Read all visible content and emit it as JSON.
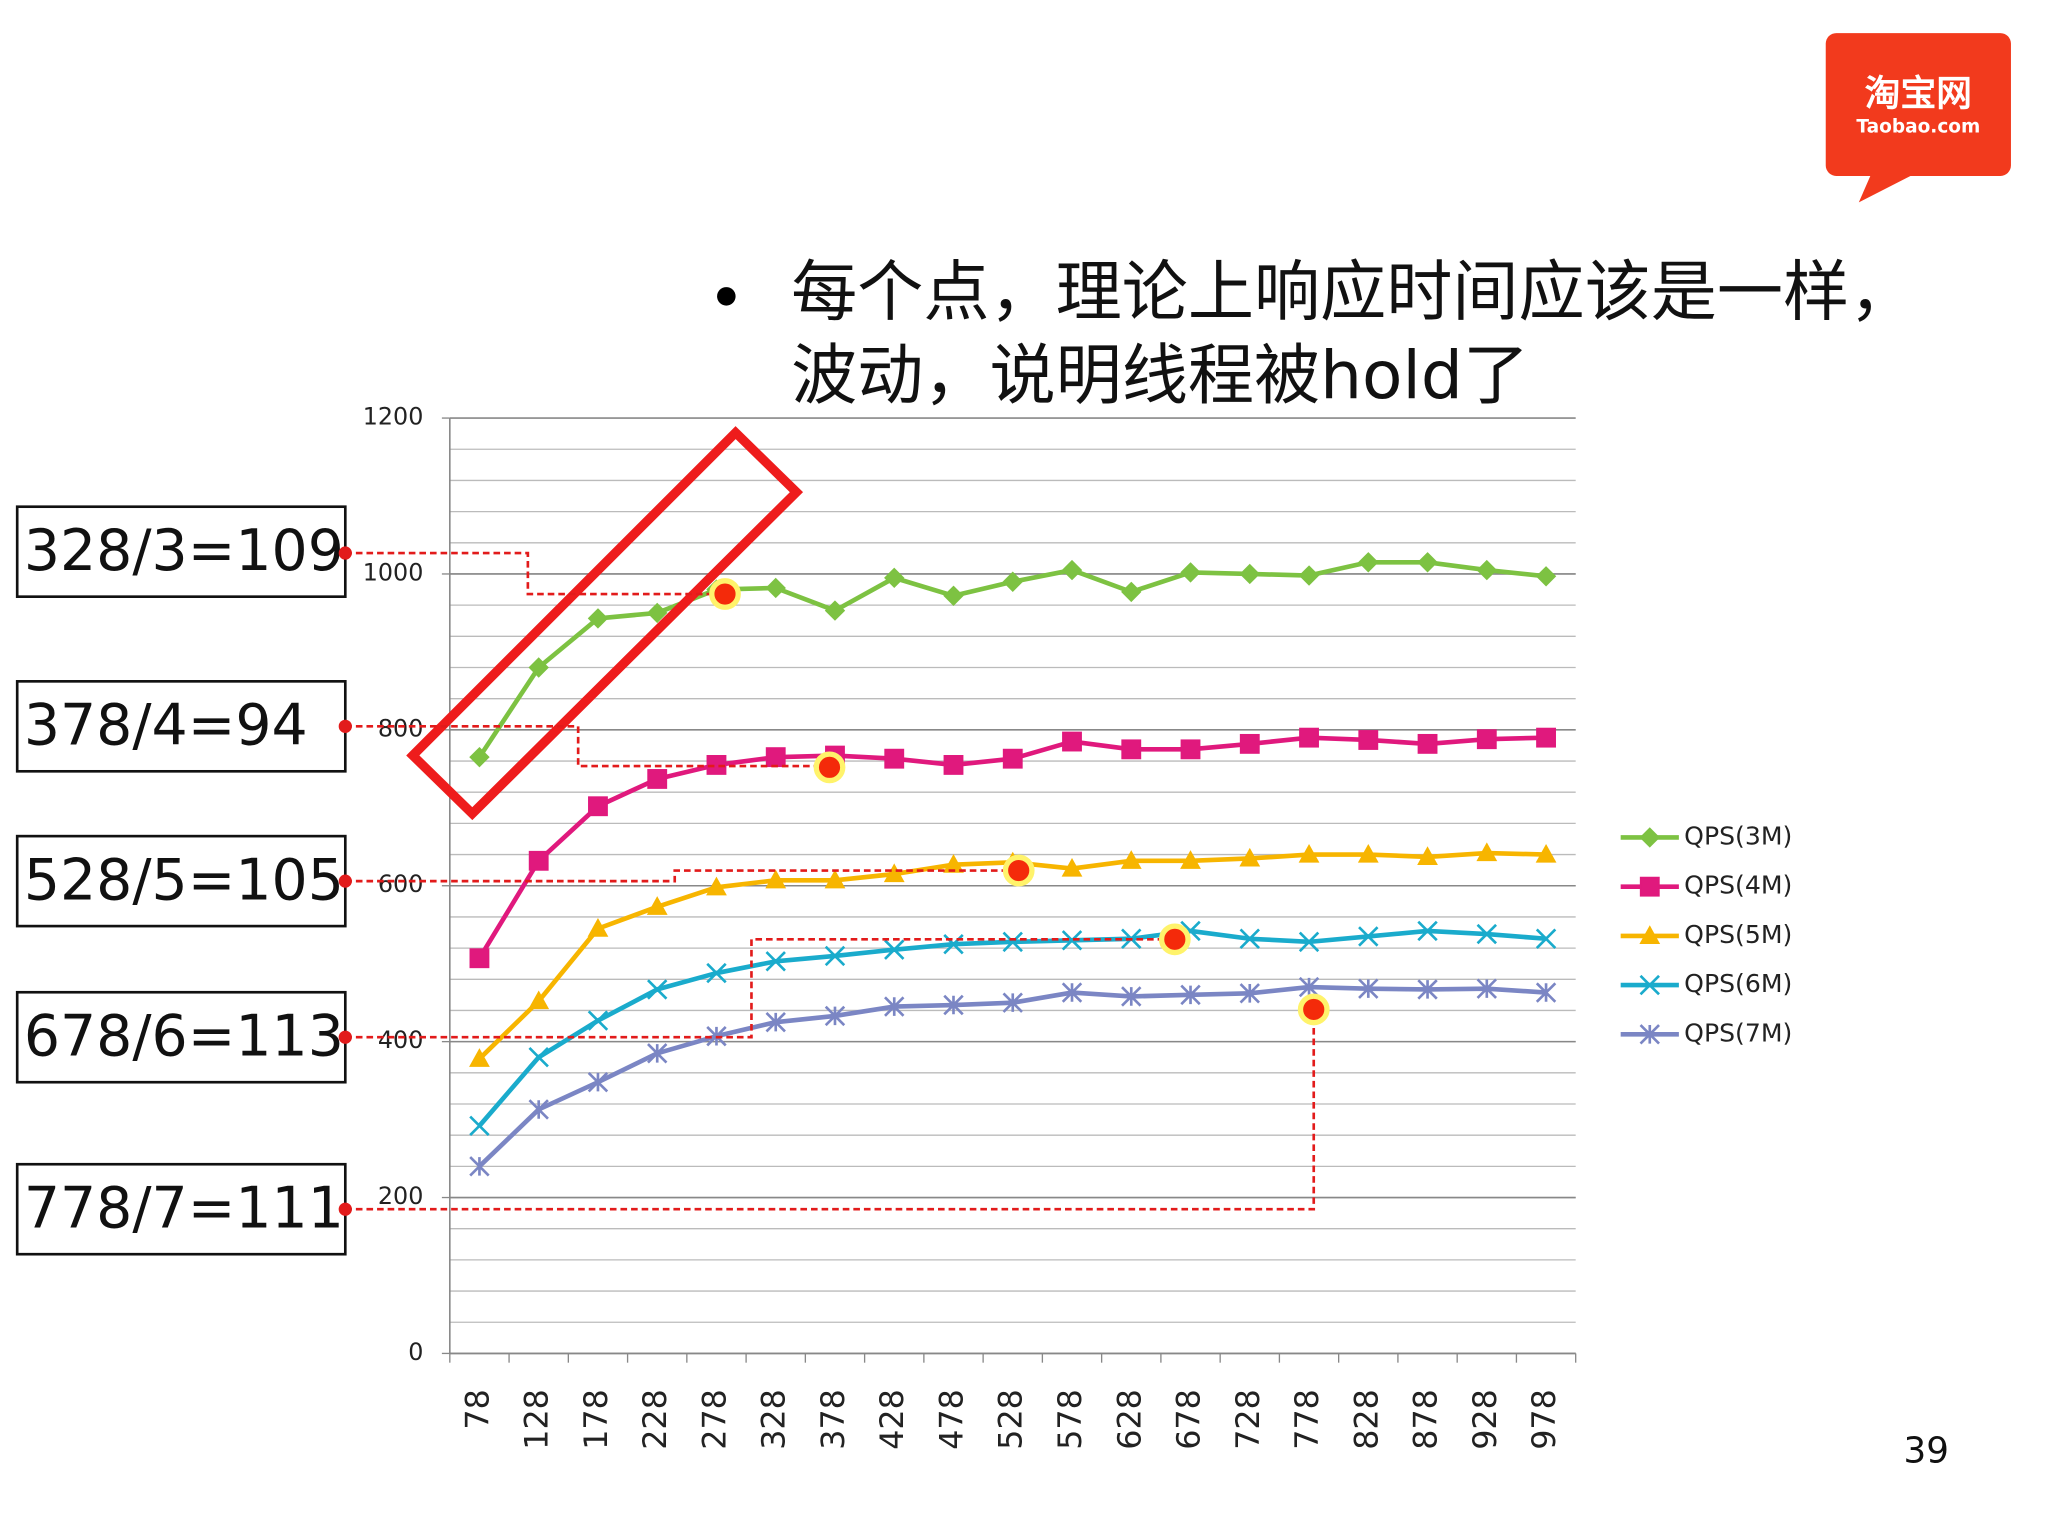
{
  "chart_data": {
    "type": "line",
    "bullet": [
      "每个点，理论上响应时间应该是一样，",
      "波动，说明线程被hold了"
    ],
    "categories": [
      "78",
      "128",
      "178",
      "228",
      "278",
      "328",
      "378",
      "428",
      "478",
      "528",
      "578",
      "628",
      "678",
      "728",
      "778",
      "828",
      "878",
      "928",
      "978"
    ],
    "series": [
      {
        "name": "QPS(3M)",
        "color": "#7dc242",
        "marker": "diamond",
        "values": [
          765,
          880,
          943,
          950,
          980,
          982,
          953,
          995,
          972,
          990,
          1005,
          977,
          1002,
          1000,
          998,
          1015,
          1015,
          1005,
          997
        ]
      },
      {
        "name": "QPS(4M)",
        "color": "#e0197d",
        "marker": "square",
        "values": [
          507,
          632,
          702,
          737,
          755,
          765,
          767,
          763,
          755,
          763,
          785,
          775,
          775,
          782,
          790,
          787,
          782,
          788,
          790
        ]
      },
      {
        "name": "QPS(5M)",
        "color": "#f7b500",
        "marker": "triangle",
        "values": [
          378,
          452,
          545,
          573,
          598,
          607,
          607,
          615,
          627,
          630,
          622,
          632,
          632,
          635,
          640,
          640,
          637,
          642,
          640
        ]
      },
      {
        "name": "QPS(6M)",
        "color": "#1aabcc",
        "marker": "x",
        "values": [
          292,
          380,
          427,
          467,
          488,
          503,
          510,
          518,
          525,
          528,
          530,
          532,
          542,
          532,
          528,
          535,
          542,
          538,
          532
        ]
      },
      {
        "name": "QPS(7M)",
        "color": "#7b86c4",
        "marker": "star",
        "values": [
          240,
          313,
          348,
          385,
          407,
          425,
          433,
          445,
          447,
          450,
          463,
          458,
          460,
          462,
          470,
          468,
          467,
          468,
          463
        ]
      }
    ],
    "ylim": [
      0,
      1200
    ],
    "yticks": [
      0,
      200,
      400,
      600,
      800,
      1000,
      1200
    ],
    "minor_grid_step": 40,
    "grid": true,
    "legend": "right",
    "annotations": [
      "328/3=109",
      "378/4=94",
      "528/5=105",
      "678/6=113",
      "778/7=111"
    ]
  },
  "logo": {
    "title": "淘宝网",
    "subtitle": "Taobao.com"
  },
  "page_number": "39"
}
